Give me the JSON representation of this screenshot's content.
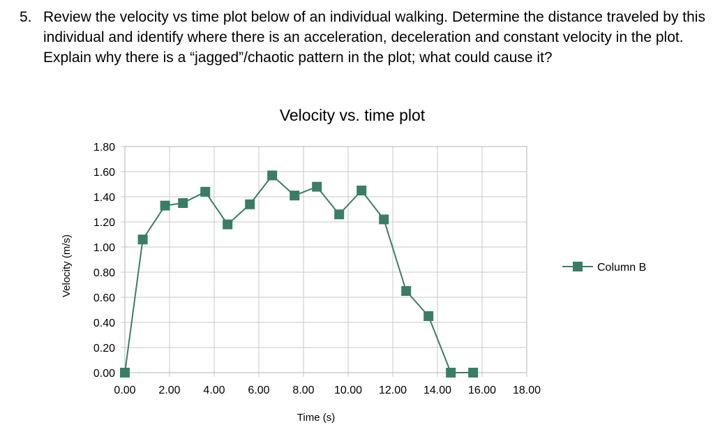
{
  "question": {
    "number": "5.",
    "text": "Review the velocity vs time plot below of an individual walking. Determine the distance traveled by this individual and identify where there is an acceleration, deceleration and constant velocity in the plot. Explain why there is a “jagged”/chaotic pattern in the plot; what could cause it?"
  },
  "chart_data": {
    "type": "line",
    "title": "Velocity vs. time plot",
    "xlabel": "Time (s)",
    "ylabel": "Velocity (m/s)",
    "xlim": [
      0,
      18
    ],
    "ylim": [
      0,
      1.8
    ],
    "x_ticks": [
      "0.00",
      "2.00",
      "4.00",
      "6.00",
      "8.00",
      "10.00",
      "12.00",
      "14.00",
      "16.00",
      "18.00"
    ],
    "y_ticks": [
      "0.00",
      "0.20",
      "0.40",
      "0.60",
      "0.80",
      "1.00",
      "1.20",
      "1.40",
      "1.60",
      "1.80"
    ],
    "grid": true,
    "legend": "right",
    "series": [
      {
        "name": "Column B",
        "color": "#3a7d66",
        "marker": "square",
        "x": [
          0.0,
          0.8,
          1.8,
          2.6,
          3.6,
          4.6,
          5.6,
          6.6,
          7.6,
          8.6,
          9.6,
          10.6,
          11.6,
          12.6,
          13.6,
          14.6,
          15.6
        ],
        "y": [
          0.0,
          1.06,
          1.33,
          1.35,
          1.44,
          1.18,
          1.34,
          1.57,
          1.41,
          1.48,
          1.26,
          1.45,
          1.22,
          0.65,
          0.45,
          0.0,
          0.0
        ]
      }
    ]
  }
}
